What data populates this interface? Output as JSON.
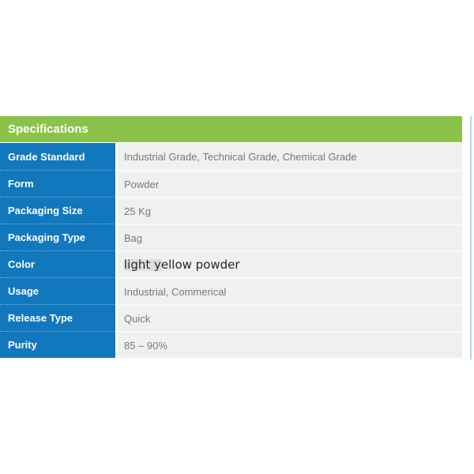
{
  "header": {
    "title": "Specifications"
  },
  "table": {
    "rows": [
      {
        "label": "Grade Standard",
        "value": "Industrial Grade, Technical Grade, Chemical Grade",
        "emphasized": false
      },
      {
        "label": "Form",
        "value": "Powder",
        "emphasized": false
      },
      {
        "label": "Packaging Size",
        "value": "25 Kg",
        "emphasized": false
      },
      {
        "label": "Packaging Type",
        "value": "Bag",
        "emphasized": false
      },
      {
        "label": "Color",
        "value": "light yellow powder",
        "emphasized": true
      },
      {
        "label": "Usage",
        "value": "Industrial, Commerical",
        "emphasized": false
      },
      {
        "label": "Release Type",
        "value": "Quick",
        "emphasized": false
      },
      {
        "label": "Purity",
        "value": "85 – 90%",
        "emphasized": false
      }
    ]
  },
  "colors": {
    "header_green": "#8bc34a",
    "label_blue": "#1278bd",
    "value_background": "#f0f0f0",
    "value_text": "#787878",
    "accent_line": "#a6dbe8",
    "emphasized_text": "#262626"
  }
}
